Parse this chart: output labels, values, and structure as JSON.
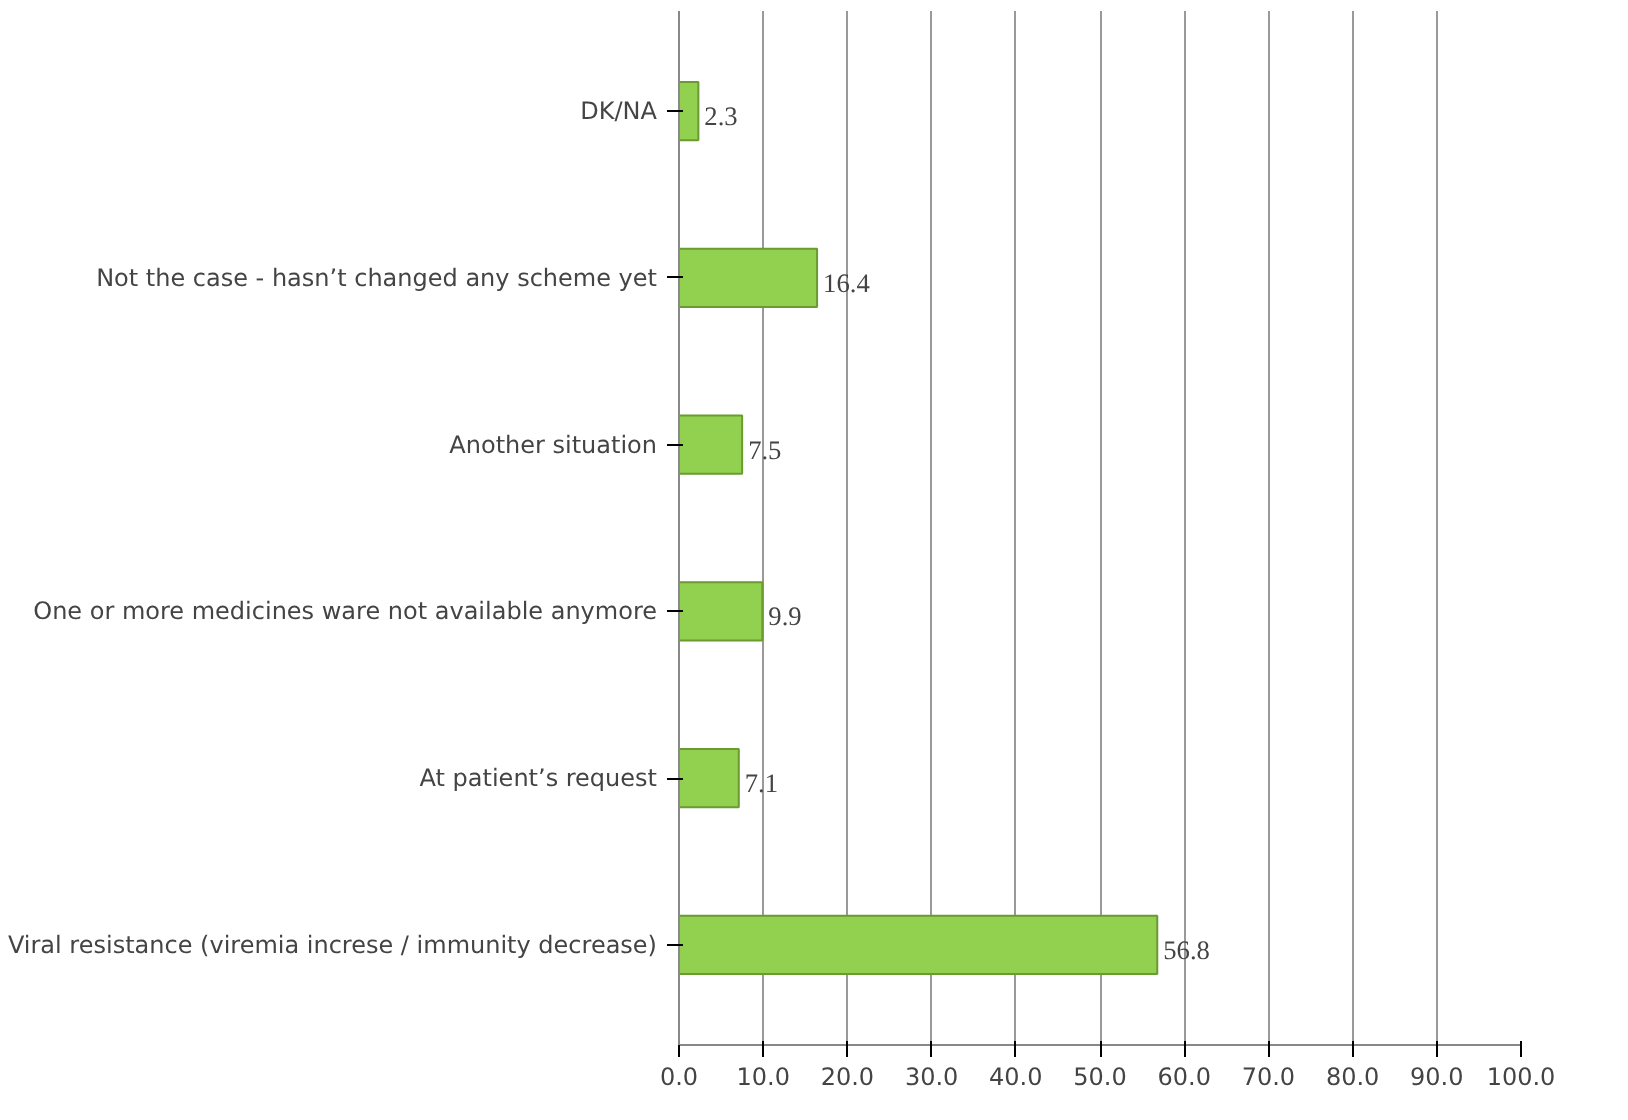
{
  "chart_data": {
    "type": "bar",
    "orientation": "horizontal",
    "categories": [
      "DK/NA",
      "Not the case - hasn’t changed any scheme yet",
      "Another situation",
      "One or more medicines ware not available anymore",
      "At patient’s request",
      "Viral resistance (viremia increse / immunity decrease)"
    ],
    "values": [
      2.3,
      16.4,
      7.5,
      9.9,
      7.1,
      56.8
    ],
    "color": "#92d050",
    "xlim": [
      0,
      100
    ],
    "xticks": [
      {
        "value": 0,
        "label": "0.0"
      },
      {
        "value": 10,
        "label": "10.0"
      },
      {
        "value": 20,
        "label": "20.0"
      },
      {
        "value": 30,
        "label": "30.0"
      },
      {
        "value": 40,
        "label": "40.0"
      },
      {
        "value": 50,
        "label": "50.0"
      },
      {
        "value": 60,
        "label": "60.0"
      },
      {
        "value": 70,
        "label": "70.0"
      },
      {
        "value": 80,
        "label": "80.0"
      },
      {
        "value": 90,
        "label": "90.0"
      },
      {
        "value": 100,
        "label": "100.0"
      }
    ],
    "grid": "x",
    "data_labels": true
  }
}
